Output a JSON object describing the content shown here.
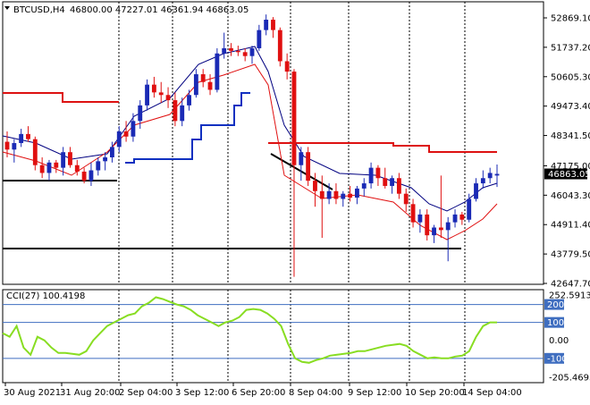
{
  "header": {
    "symbol": "BTCUSD,H4",
    "ohlc": "46800.00 47227.01 46361.94 46863.05"
  },
  "price_axis": {
    "ticks": [
      "52869.10",
      "51737.20",
      "50605.30",
      "49473.40",
      "48341.50",
      "47175.00",
      "46043.30",
      "44911.40",
      "43779.50",
      "42647.70"
    ],
    "current_price": "46863.05"
  },
  "indicator": {
    "label": "CCI(27) 100.4198",
    "ticks": [
      "252.5913",
      "200",
      "100",
      "0.00",
      "-100",
      "-205.4693"
    ],
    "levels": [
      "200",
      "100",
      "-100"
    ]
  },
  "time_axis": {
    "labels": [
      "30 Aug 2021",
      "31 Aug 20:00",
      "2 Sep 04:00",
      "3 Sep 12:00",
      "6 Sep 20:00",
      "8 Sep 04:00",
      "9 Sep 12:00",
      "10 Sep 20:00",
      "14 Sep 04:00"
    ]
  },
  "colors": {
    "bull": "#1a2ab5",
    "bear": "#e01010",
    "cci_line": "#88dd22",
    "level_line": "#3f6ec0",
    "grid": "#000000",
    "hline": "#000000",
    "resistance": "#dd1111",
    "support_blue": "#1030c0",
    "price_tag": "#000000"
  },
  "chart_data": [
    {
      "type": "candlestick",
      "title": "BTCUSD,H4",
      "ylim": [
        42647.7,
        53500
      ],
      "candles": [
        {
          "o": 48100,
          "h": 48500,
          "l": 47500,
          "c": 47800
        },
        {
          "o": 47800,
          "h": 48200,
          "l": 47300,
          "c": 48050
        },
        {
          "o": 48050,
          "h": 48600,
          "l": 47900,
          "c": 48400
        },
        {
          "o": 48400,
          "h": 48700,
          "l": 48100,
          "c": 48200
        },
        {
          "o": 48200,
          "h": 48300,
          "l": 47000,
          "c": 47200
        },
        {
          "o": 47200,
          "h": 47500,
          "l": 46700,
          "c": 46900
        },
        {
          "o": 46900,
          "h": 47400,
          "l": 46600,
          "c": 47300
        },
        {
          "o": 47300,
          "h": 47400,
          "l": 46900,
          "c": 47100
        },
        {
          "o": 47100,
          "h": 47900,
          "l": 46800,
          "c": 47700
        },
        {
          "o": 47700,
          "h": 47900,
          "l": 47100,
          "c": 47200
        },
        {
          "o": 47200,
          "h": 47400,
          "l": 46800,
          "c": 46950
        },
        {
          "o": 46950,
          "h": 47100,
          "l": 46500,
          "c": 46600
        },
        {
          "o": 46600,
          "h": 47300,
          "l": 46400,
          "c": 47000
        },
        {
          "o": 47000,
          "h": 47500,
          "l": 46800,
          "c": 47350
        },
        {
          "o": 47350,
          "h": 47700,
          "l": 47000,
          "c": 47500
        },
        {
          "o": 47500,
          "h": 48100,
          "l": 47300,
          "c": 47900
        },
        {
          "o": 47900,
          "h": 48700,
          "l": 47700,
          "c": 48500
        },
        {
          "o": 48500,
          "h": 48900,
          "l": 48100,
          "c": 48300
        },
        {
          "o": 48300,
          "h": 49200,
          "l": 48100,
          "c": 48900
        },
        {
          "o": 48900,
          "h": 49700,
          "l": 48600,
          "c": 49500
        },
        {
          "o": 49500,
          "h": 50500,
          "l": 49300,
          "c": 50300
        },
        {
          "o": 50300,
          "h": 50600,
          "l": 49800,
          "c": 50000
        },
        {
          "o": 50000,
          "h": 50400,
          "l": 49600,
          "c": 49900
        },
        {
          "o": 49900,
          "h": 50200,
          "l": 49400,
          "c": 49700
        },
        {
          "o": 49700,
          "h": 50000,
          "l": 48700,
          "c": 48900
        },
        {
          "o": 48900,
          "h": 49800,
          "l": 48700,
          "c": 49500
        },
        {
          "o": 49500,
          "h": 50100,
          "l": 49300,
          "c": 49900
        },
        {
          "o": 49900,
          "h": 50900,
          "l": 49800,
          "c": 50700
        },
        {
          "o": 50700,
          "h": 50900,
          "l": 50200,
          "c": 50400
        },
        {
          "o": 50400,
          "h": 50700,
          "l": 49900,
          "c": 50100
        },
        {
          "o": 50100,
          "h": 51700,
          "l": 50000,
          "c": 51500
        },
        {
          "o": 51500,
          "h": 52300,
          "l": 51300,
          "c": 51700
        },
        {
          "o": 51700,
          "h": 51900,
          "l": 51400,
          "c": 51600
        },
        {
          "o": 51600,
          "h": 51800,
          "l": 51400,
          "c": 51550
        },
        {
          "o": 51550,
          "h": 51700,
          "l": 51200,
          "c": 51400
        },
        {
          "o": 51400,
          "h": 51800,
          "l": 51100,
          "c": 51700
        },
        {
          "o": 51700,
          "h": 52600,
          "l": 51600,
          "c": 52400
        },
        {
          "o": 52400,
          "h": 53000,
          "l": 52200,
          "c": 52800
        },
        {
          "o": 52800,
          "h": 52900,
          "l": 52100,
          "c": 52400
        },
        {
          "o": 52400,
          "h": 52500,
          "l": 51000,
          "c": 51200
        },
        {
          "o": 51200,
          "h": 51500,
          "l": 50500,
          "c": 50800
        },
        {
          "o": 50800,
          "h": 50900,
          "l": 42900,
          "c": 47200
        },
        {
          "o": 47200,
          "h": 47900,
          "l": 46600,
          "c": 47700
        },
        {
          "o": 47700,
          "h": 47900,
          "l": 46400,
          "c": 46600
        },
        {
          "o": 46600,
          "h": 46900,
          "l": 45600,
          "c": 46200
        },
        {
          "o": 46200,
          "h": 46800,
          "l": 44400,
          "c": 45900
        },
        {
          "o": 45900,
          "h": 46500,
          "l": 45700,
          "c": 46200
        },
        {
          "o": 46200,
          "h": 46500,
          "l": 45700,
          "c": 45900
        },
        {
          "o": 45900,
          "h": 46200,
          "l": 45600,
          "c": 46100
        },
        {
          "o": 46100,
          "h": 46400,
          "l": 45800,
          "c": 45950
        },
        {
          "o": 45950,
          "h": 46400,
          "l": 45700,
          "c": 46300
        },
        {
          "o": 46300,
          "h": 46700,
          "l": 46000,
          "c": 46500
        },
        {
          "o": 46500,
          "h": 47300,
          "l": 46300,
          "c": 47100
        },
        {
          "o": 47100,
          "h": 47200,
          "l": 46400,
          "c": 46700
        },
        {
          "o": 46700,
          "h": 47100,
          "l": 46300,
          "c": 46400
        },
        {
          "o": 46400,
          "h": 46800,
          "l": 46100,
          "c": 46700
        },
        {
          "o": 46700,
          "h": 46900,
          "l": 45900,
          "c": 46100
        },
        {
          "o": 46100,
          "h": 46300,
          "l": 45400,
          "c": 45700
        },
        {
          "o": 45700,
          "h": 45900,
          "l": 44800,
          "c": 45000
        },
        {
          "o": 45000,
          "h": 45500,
          "l": 44600,
          "c": 45300
        },
        {
          "o": 45300,
          "h": 45500,
          "l": 44300,
          "c": 44500
        },
        {
          "o": 44500,
          "h": 44900,
          "l": 44200,
          "c": 44800
        },
        {
          "o": 44800,
          "h": 46800,
          "l": 44400,
          "c": 44700
        },
        {
          "o": 44700,
          "h": 45200,
          "l": 43500,
          "c": 45000
        },
        {
          "o": 45000,
          "h": 45500,
          "l": 44800,
          "c": 45300
        },
        {
          "o": 45300,
          "h": 45400,
          "l": 44900,
          "c": 45100
        },
        {
          "o": 45100,
          "h": 46100,
          "l": 45000,
          "c": 45900
        },
        {
          "o": 45900,
          "h": 46700,
          "l": 45800,
          "c": 46500
        },
        {
          "o": 46500,
          "h": 47000,
          "l": 46300,
          "c": 46700
        },
        {
          "o": 46700,
          "h": 47100,
          "l": 46500,
          "c": 46900
        },
        {
          "o": 46800,
          "h": 47227.01,
          "l": 46361.94,
          "c": 46863.05
        }
      ]
    },
    {
      "type": "line",
      "title": "CCI(27) 100.4198",
      "ylim": [
        -205.4693,
        252.5913
      ],
      "values": [
        40,
        20,
        80,
        -40,
        -80,
        20,
        0,
        -40,
        -70,
        -70,
        -75,
        -80,
        -60,
        0,
        40,
        80,
        100,
        120,
        140,
        150,
        190,
        210,
        240,
        230,
        215,
        200,
        190,
        170,
        140,
        120,
        100,
        80,
        100,
        110,
        130,
        170,
        175,
        170,
        150,
        120,
        80,
        -20,
        -100,
        -120,
        -125,
        -110,
        -100,
        -85,
        -80,
        -75,
        -70,
        -60,
        -60,
        -50,
        -40,
        -30,
        -25,
        -20,
        -30,
        -60,
        -80,
        -100,
        -95,
        -100,
        -100,
        -90,
        -85,
        -60,
        20,
        80,
        100,
        100.4198
      ]
    }
  ]
}
